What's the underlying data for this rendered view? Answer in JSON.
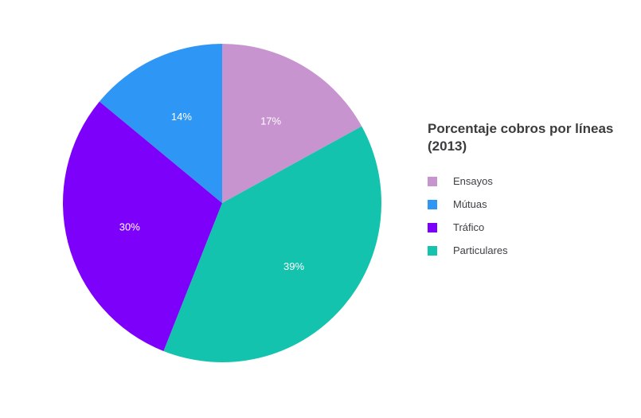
{
  "chart_data": {
    "type": "pie",
    "title": "Porcentaje cobros por líneas (2013)",
    "categories": [
      "Ensayos",
      "Mútuas",
      "Tráfico",
      "Particulares"
    ],
    "values": [
      17,
      14,
      30,
      39
    ],
    "unit": "percent",
    "slice_labels": [
      "17%",
      "14%",
      "30%",
      "39%"
    ],
    "colors": [
      "#c794cf",
      "#2e96f5",
      "#7d00fb",
      "#14c3ad"
    ],
    "slice_label_color": "#ffffff",
    "background": "#ffffff",
    "title_color": "#3c3c3e",
    "legend_text_color": "#3f4045",
    "legend_position": "right",
    "start_angle_deg": 0,
    "direction": "clockwise",
    "clockwise_order": [
      "Ensayos",
      "Particulares",
      "Tráfico",
      "Mútuas"
    ]
  }
}
